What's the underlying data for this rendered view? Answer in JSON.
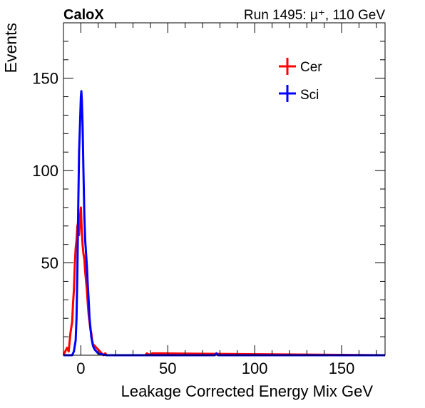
{
  "chart_data": {
    "type": "line",
    "title_left": "CaloX",
    "title_right": "Run 1495: μ⁺, 110 GeV",
    "xlabel": "Leakage Corrected Energy Mix GeV",
    "ylabel": "Events",
    "xlim": [
      -10,
      175
    ],
    "ylim": [
      0,
      180
    ],
    "x_ticks": [
      0,
      50,
      100,
      150
    ],
    "x_tick_labels": [
      "0",
      "50",
      "100",
      "150"
    ],
    "y_ticks": [
      50,
      100,
      150
    ],
    "y_tick_labels": [
      "50",
      "100",
      "150"
    ],
    "grid": false,
    "legend_position": "top-right",
    "series": [
      {
        "name": "Cer",
        "color": "#ff0000",
        "x": [
          -10,
          -8,
          -7,
          -6,
          -5,
          -4.5,
          -4,
          -3.5,
          -3,
          -2.5,
          -2,
          -1.5,
          -1,
          -0.5,
          0,
          0.5,
          1,
          1.5,
          2,
          2.5,
          3,
          3.5,
          4,
          4.5,
          5,
          5.5,
          6,
          6.5,
          7,
          8,
          9,
          10,
          11,
          12,
          13,
          14,
          15,
          37,
          38,
          40,
          41,
          175
        ],
        "y": [
          0,
          4,
          2,
          12,
          18,
          28,
          35,
          48,
          58,
          62,
          70,
          72,
          65,
          75,
          80,
          68,
          60,
          55,
          52,
          45,
          40,
          35,
          28,
          22,
          18,
          14,
          12,
          8,
          6,
          5,
          4,
          3,
          2,
          1,
          0,
          1,
          0,
          0,
          1,
          0,
          1,
          0
        ]
      },
      {
        "name": "Sci",
        "color": "#0000ff",
        "x": [
          -10,
          -5,
          -4,
          -3,
          -2.5,
          -2,
          -1.5,
          -1,
          -0.5,
          0,
          0.3,
          0.6,
          1,
          1.5,
          2,
          2.5,
          3,
          3.5,
          4,
          4.5,
          5,
          6,
          7,
          8,
          9,
          10,
          12,
          15,
          77,
          78,
          79,
          175
        ],
        "y": [
          0,
          0,
          2,
          8,
          20,
          45,
          80,
          110,
          125,
          140,
          143,
          138,
          125,
          100,
          75,
          62,
          55,
          48,
          38,
          30,
          20,
          10,
          5,
          3,
          2,
          1,
          0.5,
          0,
          0,
          1,
          0,
          0
        ]
      }
    ]
  }
}
